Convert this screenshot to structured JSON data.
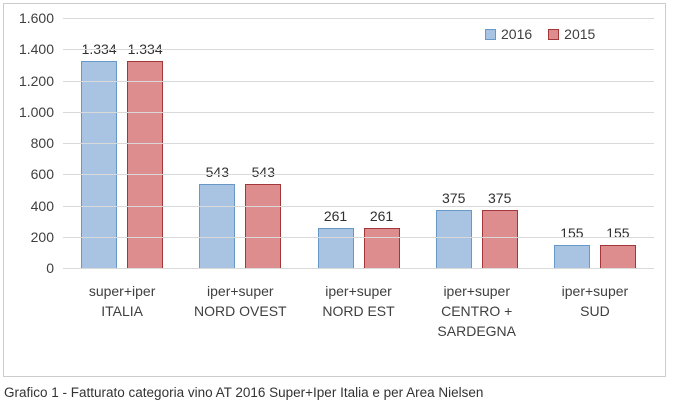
{
  "chart_data": {
    "type": "bar",
    "title": "",
    "xlabel": "",
    "ylabel": "",
    "categories": [
      "super+iper\nITALIA",
      "iper+super\nNORD OVEST",
      "iper+super\nNORD EST",
      "iper+super\nCENTRO +\nSARDEGNA",
      "iper+super\nSUD"
    ],
    "series": [
      {
        "name": "2016",
        "values": [
          1334,
          543,
          261,
          375,
          155
        ],
        "labels": [
          "1.334",
          "543",
          "261",
          "375",
          "155"
        ],
        "fill": "#A9C3E2",
        "border": "#6898C8"
      },
      {
        "name": "2015",
        "values": [
          1334,
          543,
          261,
          375,
          155
        ],
        "labels": [
          "1.334",
          "543",
          "261",
          "375",
          "155"
        ],
        "fill": "#DE8D8F",
        "border": "#A33638"
      }
    ],
    "ylim": [
      0,
      1600
    ],
    "y_ticks": [
      {
        "value": 0,
        "label": "0"
      },
      {
        "value": 200,
        "label": "200"
      },
      {
        "value": 400,
        "label": "400"
      },
      {
        "value": 600,
        "label": "600"
      },
      {
        "value": 800,
        "label": "800"
      },
      {
        "value": 1000,
        "label": "1.000"
      },
      {
        "value": 1200,
        "label": "1.200"
      },
      {
        "value": 1400,
        "label": "1.400"
      },
      {
        "value": 1600,
        "label": "1.600"
      }
    ],
    "grid": true,
    "legend_position": "top-right",
    "caption": "Grafico 1 - Fatturato categoria vino AT 2016 Super+Iper Italia e per Area Nielsen"
  }
}
